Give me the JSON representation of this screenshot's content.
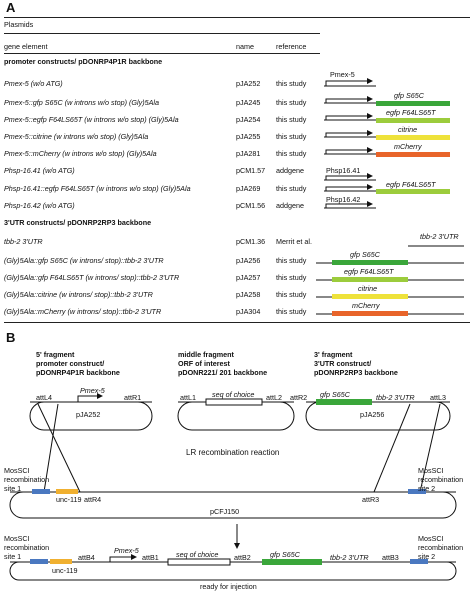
{
  "panel_a": {
    "letter": "A",
    "title": "Plasmids",
    "headers": {
      "gene_element": "gene element",
      "name": "name",
      "reference": "reference"
    },
    "sections": {
      "promoter": "promoter constructs/ pDONRP4P1R backbone",
      "utr": "3'UTR constructs/ pDONRP2RP3 backbone"
    },
    "rows": [
      {
        "gene": "Pmex-5 (w/o ATG)",
        "name": "pJA252",
        "ref": "this study"
      },
      {
        "gene": "Pmex-5::gfp S65C (w introns w/o stop) (Gly)5Ala",
        "name": "pJA245",
        "ref": "this study"
      },
      {
        "gene": "Pmex-5::egfp F64LS65T (w introns w/o stop) (Gly)5Ala",
        "name": "pJA254",
        "ref": "this study"
      },
      {
        "gene": "Pmex-5::citrine (w introns w/o stop) (Gly)5Ala",
        "name": "pJA255",
        "ref": "this study"
      },
      {
        "gene": "Pmex-5::mCherry (w introns w/o stop) (Gly)5Ala",
        "name": "pJA281",
        "ref": "this study"
      },
      {
        "gene": "Phsp-16.41 (w/o ATG)",
        "name": "pCM1.57",
        "ref": "addgene"
      },
      {
        "gene": "Phsp-16.41::egfp F64LS65T (w introns w/o stop) (Gly)5Ala",
        "name": "pJA269",
        "ref": "this study"
      },
      {
        "gene": "Phsp-16.42 (w/o ATG)",
        "name": "pCM1.56",
        "ref": "addgene"
      },
      {
        "gene": "tbb-2 3'UTR",
        "name": "pCM1.36",
        "ref": "Merrit et al."
      },
      {
        "gene": "(Gly)5Ala::gfp S65C (w introns/ stop)::tbb-2 3'UTR",
        "name": "pJA256",
        "ref": "this study"
      },
      {
        "gene": "(Gly)5Ala::gfp F64LS65T (w introns/ stop)::tbb-2 3'UTR",
        "name": "pJA257",
        "ref": "this study"
      },
      {
        "gene": "(Gly)5Ala::citrine (w introns/ stop)::tbb-2 3'UTR",
        "name": "pJA258",
        "ref": "this study"
      },
      {
        "gene": "(Gly)5Ala::mCherry (w introns/ stop)::tbb-2 3'UTR",
        "name": "pJA304",
        "ref": "this study"
      }
    ],
    "schematic_labels": {
      "pmex5": "Pmex-5",
      "gfp": "gfp S65C",
      "egfp": "egfp F64LS65T",
      "citrine": "citrine",
      "mcherry": "mCherry",
      "phsp1641": "Phsp16.41",
      "phsp1642": "Phsp16.42",
      "tbb2": "tbb-2 3'UTR",
      "gfp_f64": "egfp F64LS65T"
    }
  },
  "panel_b": {
    "letter": "B",
    "fragment5": {
      "line1": "5' fragment",
      "line2": "promoter construct/",
      "line3": "pDONRP4P1R backbone"
    },
    "fragmentM": {
      "line1": "middle fragment",
      "line2": "ORF of interest",
      "line3": "pDONR221/ 201 backbone"
    },
    "fragment3": {
      "line1": "3' fragment",
      "line2": "3'UTR construct/",
      "line3": "pDONRP2RP3 backbone"
    },
    "plasmid1": {
      "att_left": "attL4",
      "promoter": "Pmex-5",
      "att_right": "attR1",
      "name": "pJA252"
    },
    "plasmid2": {
      "att_left": "attL1",
      "insert": "seq of choice",
      "att_right": "attL2"
    },
    "plasmid3": {
      "att_left": "attR2",
      "gene": "gfp S65C",
      "utr": "tbb-2 3'UTR",
      "att_right": "attL3",
      "name": "pJA256"
    },
    "reaction": "LR recombination reaction",
    "dest": {
      "mos_left": "MosSCI recombination site 1",
      "mos_left_l1": "MosSCI",
      "mos_left_l2": "recombination",
      "mos_left_l3": "site 1",
      "unc": "unc-119",
      "att_r4": "attR4",
      "name": "pCFJ150",
      "att_r3": "attR3",
      "mos_right_l1": "MosSCI",
      "mos_right_l2": "recombination",
      "mos_right_l3": "site 2"
    },
    "product": {
      "mos_left_l1": "MosSCI",
      "mos_left_l2": "recombination",
      "mos_left_l3": "site 1",
      "unc": "unc-119",
      "att_b4": "attB4",
      "promoter": "Pmex-5",
      "att_b1": "attB1",
      "insert": "seq of choice",
      "att_b2": "attB2",
      "gene": "gfp S65C",
      "utr": "tbb-2 3'UTR",
      "att_b3": "attB3",
      "mos_right_l1": "MosSCI",
      "mos_right_l2": "recombination",
      "mos_right_l3": "site 2"
    },
    "ready": "ready for injection"
  },
  "colors": {
    "gfp": "#3aa63a",
    "egfp": "#9ccc3c",
    "citrine": "#eee23a",
    "mcherry": "#e8642a",
    "unc": "#f0b030",
    "mossci": "#4a78c0"
  }
}
